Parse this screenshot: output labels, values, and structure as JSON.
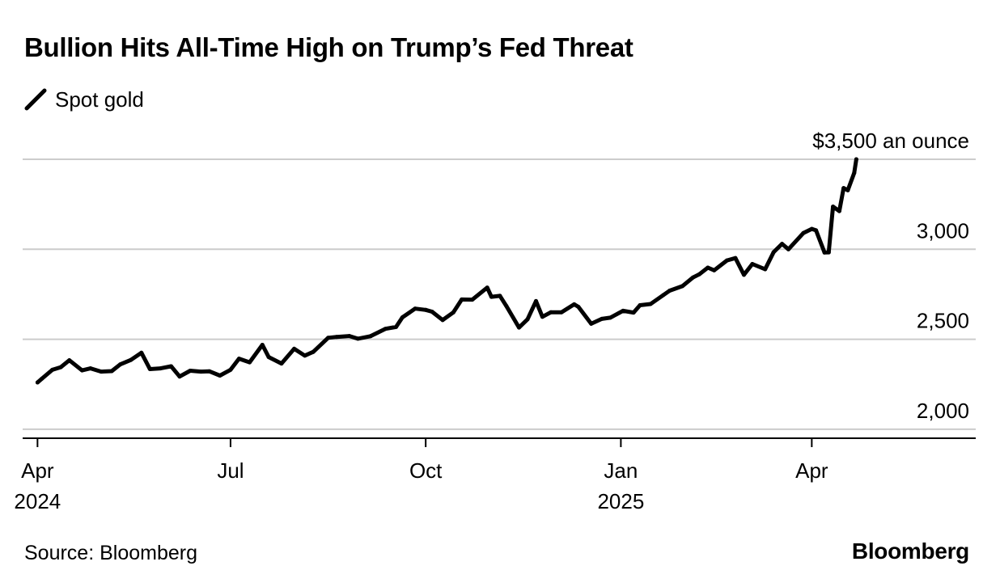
{
  "header": {
    "title": "Bullion Hits All-Time High on Trump’s Fed Threat"
  },
  "legend": {
    "label": "Spot gold",
    "icon": "diagonal-line-icon"
  },
  "footer": {
    "source": "Source: Bloomberg",
    "brand": "Bloomberg"
  },
  "chart_data": {
    "type": "line",
    "title": "Bullion Hits All-Time High on Trump’s Fed Threat",
    "xlabel": "",
    "ylabel": "",
    "ylim": [
      1950,
      3500
    ],
    "xlim": [
      "2024-03-25",
      "2025-06-15"
    ],
    "grid": true,
    "legend_position": "top-left",
    "y_ticks": [
      {
        "value": 3500,
        "label": "$3,500 an ounce"
      },
      {
        "value": 3000,
        "label": "3,000"
      },
      {
        "value": 2500,
        "label": "2,500"
      },
      {
        "value": 2000,
        "label": "2,000"
      }
    ],
    "x_ticks": [
      {
        "date": "2024-04-01",
        "label": "Apr",
        "sublabel": "2024"
      },
      {
        "date": "2024-07-01",
        "label": "Jul",
        "sublabel": ""
      },
      {
        "date": "2024-10-01",
        "label": "Oct",
        "sublabel": ""
      },
      {
        "date": "2025-01-01",
        "label": "Jan",
        "sublabel": "2025"
      },
      {
        "date": "2025-04-01",
        "label": "Apr",
        "sublabel": ""
      }
    ],
    "colors": {
      "line": "#000000",
      "grid": "#cccccc",
      "axis": "#000000"
    },
    "series": [
      {
        "name": "Spot gold",
        "points": [
          [
            "2024-04-01",
            2260
          ],
          [
            "2024-04-03",
            2280
          ],
          [
            "2024-04-08",
            2330
          ],
          [
            "2024-04-12",
            2345
          ],
          [
            "2024-04-16",
            2383
          ],
          [
            "2024-04-22",
            2327
          ],
          [
            "2024-04-26",
            2338
          ],
          [
            "2024-05-01",
            2320
          ],
          [
            "2024-05-06",
            2323
          ],
          [
            "2024-05-10",
            2360
          ],
          [
            "2024-05-15",
            2385
          ],
          [
            "2024-05-20",
            2425
          ],
          [
            "2024-05-24",
            2334
          ],
          [
            "2024-05-29",
            2338
          ],
          [
            "2024-06-03",
            2350
          ],
          [
            "2024-06-07",
            2293
          ],
          [
            "2024-06-12",
            2325
          ],
          [
            "2024-06-17",
            2320
          ],
          [
            "2024-06-21",
            2322
          ],
          [
            "2024-06-26",
            2298
          ],
          [
            "2024-07-01",
            2330
          ],
          [
            "2024-07-05",
            2392
          ],
          [
            "2024-07-10",
            2372
          ],
          [
            "2024-07-16",
            2469
          ],
          [
            "2024-07-19",
            2401
          ],
          [
            "2024-07-25",
            2365
          ],
          [
            "2024-07-31",
            2447
          ],
          [
            "2024-08-05",
            2409
          ],
          [
            "2024-08-09",
            2430
          ],
          [
            "2024-08-16",
            2508
          ],
          [
            "2024-08-20",
            2513
          ],
          [
            "2024-08-26",
            2518
          ],
          [
            "2024-08-30",
            2503
          ],
          [
            "2024-09-05",
            2517
          ],
          [
            "2024-09-12",
            2558
          ],
          [
            "2024-09-17",
            2568
          ],
          [
            "2024-09-20",
            2621
          ],
          [
            "2024-09-26",
            2670
          ],
          [
            "2024-10-01",
            2663
          ],
          [
            "2024-10-04",
            2653
          ],
          [
            "2024-10-09",
            2607
          ],
          [
            "2024-10-14",
            2649
          ],
          [
            "2024-10-18",
            2721
          ],
          [
            "2024-10-23",
            2720
          ],
          [
            "2024-10-30",
            2787
          ],
          [
            "2024-11-01",
            2736
          ],
          [
            "2024-11-05",
            2741
          ],
          [
            "2024-11-08",
            2685
          ],
          [
            "2024-11-14",
            2565
          ],
          [
            "2024-11-18",
            2611
          ],
          [
            "2024-11-22",
            2712
          ],
          [
            "2024-11-25",
            2625
          ],
          [
            "2024-11-29",
            2650
          ],
          [
            "2024-12-04",
            2650
          ],
          [
            "2024-12-10",
            2694
          ],
          [
            "2024-12-12",
            2680
          ],
          [
            "2024-12-18",
            2586
          ],
          [
            "2024-12-23",
            2613
          ],
          [
            "2024-12-27",
            2620
          ],
          [
            "2025-01-02",
            2658
          ],
          [
            "2025-01-07",
            2648
          ],
          [
            "2025-01-10",
            2689
          ],
          [
            "2025-01-15",
            2696
          ],
          [
            "2025-01-21",
            2745
          ],
          [
            "2025-01-24",
            2770
          ],
          [
            "2025-01-30",
            2795
          ],
          [
            "2025-02-04",
            2843
          ],
          [
            "2025-02-07",
            2861
          ],
          [
            "2025-02-11",
            2898
          ],
          [
            "2025-02-14",
            2883
          ],
          [
            "2025-02-20",
            2938
          ],
          [
            "2025-02-24",
            2951
          ],
          [
            "2025-02-28",
            2858
          ],
          [
            "2025-03-04",
            2918
          ],
          [
            "2025-03-10",
            2889
          ],
          [
            "2025-03-14",
            2984
          ],
          [
            "2025-03-18",
            3030
          ],
          [
            "2025-03-21",
            3000
          ],
          [
            "2025-03-28",
            3090
          ],
          [
            "2025-04-01",
            3113
          ],
          [
            "2025-04-03",
            3105
          ],
          [
            "2025-04-07",
            2982
          ],
          [
            "2025-04-09",
            2983
          ],
          [
            "2025-04-11",
            3237
          ],
          [
            "2025-04-14",
            3212
          ],
          [
            "2025-04-16",
            3340
          ],
          [
            "2025-04-18",
            3328
          ],
          [
            "2025-04-21",
            3424
          ],
          [
            "2025-04-22",
            3500
          ]
        ]
      }
    ]
  }
}
